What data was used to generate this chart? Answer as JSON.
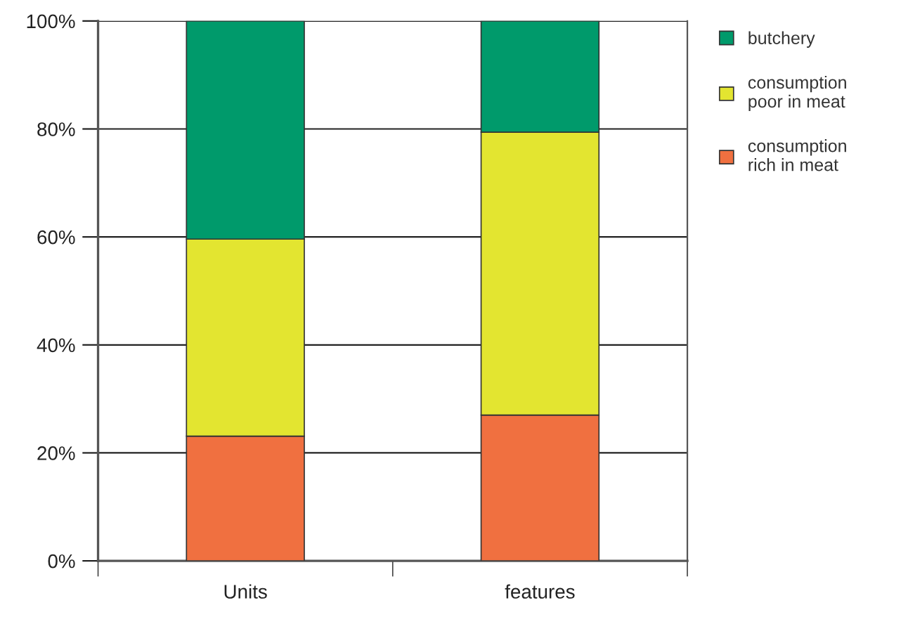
{
  "chart_data": {
    "type": "bar",
    "stacked": true,
    "categories": [
      "Units",
      "features"
    ],
    "series": [
      {
        "name": "consumption\nrich in meat",
        "color": "#f07040",
        "values": [
          23.1,
          27.0
        ]
      },
      {
        "name": "consumption\npoor in meat",
        "color": "#e3e530",
        "values": [
          36.5,
          52.4
        ]
      },
      {
        "name": "butchery",
        "color": "#009a6b",
        "values": [
          40.4,
          20.6
        ]
      }
    ],
    "ylim": [
      0,
      100
    ],
    "yticks": [
      {
        "value": 0,
        "label": "0%"
      },
      {
        "value": 20,
        "label": "20%"
      },
      {
        "value": 40,
        "label": "40%"
      },
      {
        "value": 60,
        "label": "60%"
      },
      {
        "value": 80,
        "label": "80%"
      },
      {
        "value": 100,
        "label": "100%"
      }
    ],
    "grid": "y",
    "legend": "top right"
  }
}
